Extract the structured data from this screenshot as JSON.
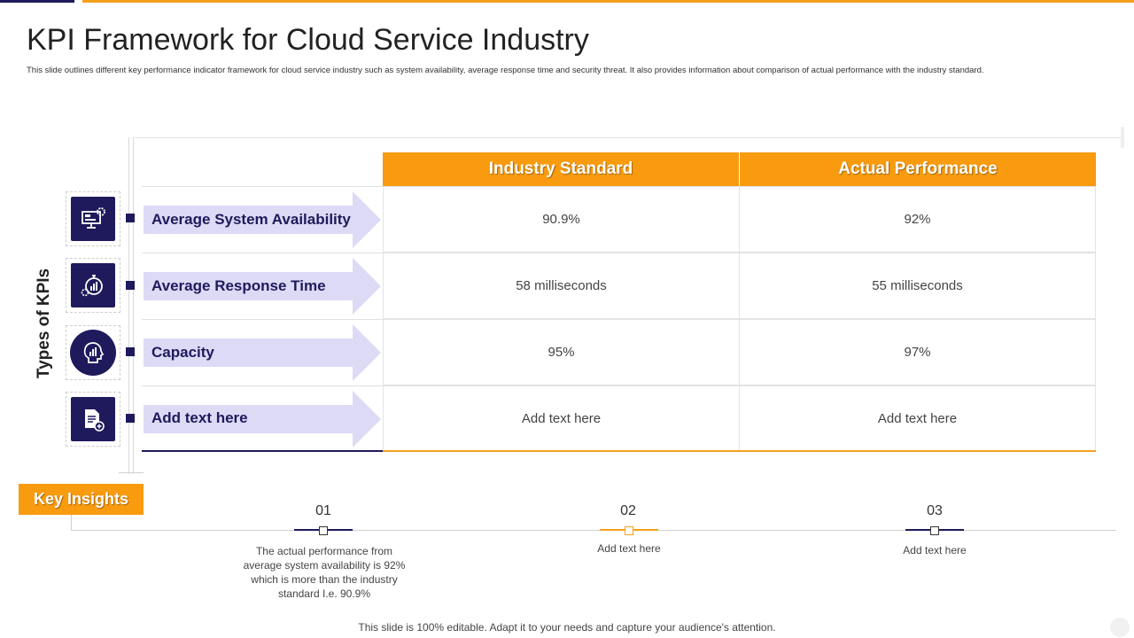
{
  "title": "KPI Framework for Cloud Service Industry",
  "subtitle": "This slide outlines different key performance indicator framework for cloud service industry such as system availability, average response time and security threat. It also provides information about comparison of actual performance with the industry standard.",
  "axis_label": "Types of KPIs",
  "table": {
    "headers": [
      "Industry Standard",
      "Actual Performance"
    ],
    "rows": [
      {
        "kpi": "Average System Availability",
        "icon": "monitor-gear-icon",
        "standard": "90.9%",
        "actual": "92%"
      },
      {
        "kpi": "Average Response Time",
        "icon": "stopwatch-gear-icon",
        "standard": "58 milliseconds",
        "actual": "55 milliseconds"
      },
      {
        "kpi": "Capacity",
        "icon": "head-chart-icon",
        "standard": "95%",
        "actual": "97%"
      },
      {
        "kpi": "Add text here",
        "icon": "document-add-icon",
        "standard": "Add text here",
        "actual": "Add text here"
      }
    ]
  },
  "key_insights": {
    "label": "Key Insights",
    "items": [
      {
        "number": "01",
        "text": "The actual performance from average system availability is 92% which is more than the industry standard I.e. 90.9%"
      },
      {
        "number": "02",
        "text": "Add text here"
      },
      {
        "number": "03",
        "text": "Add text here"
      }
    ]
  },
  "footer": "This slide is 100% editable. Adapt it to your needs and capture your audience's attention.",
  "colors": {
    "navy": "#1f1a5c",
    "orange": "#f99b0f",
    "arrow": "#dcdaf5"
  }
}
